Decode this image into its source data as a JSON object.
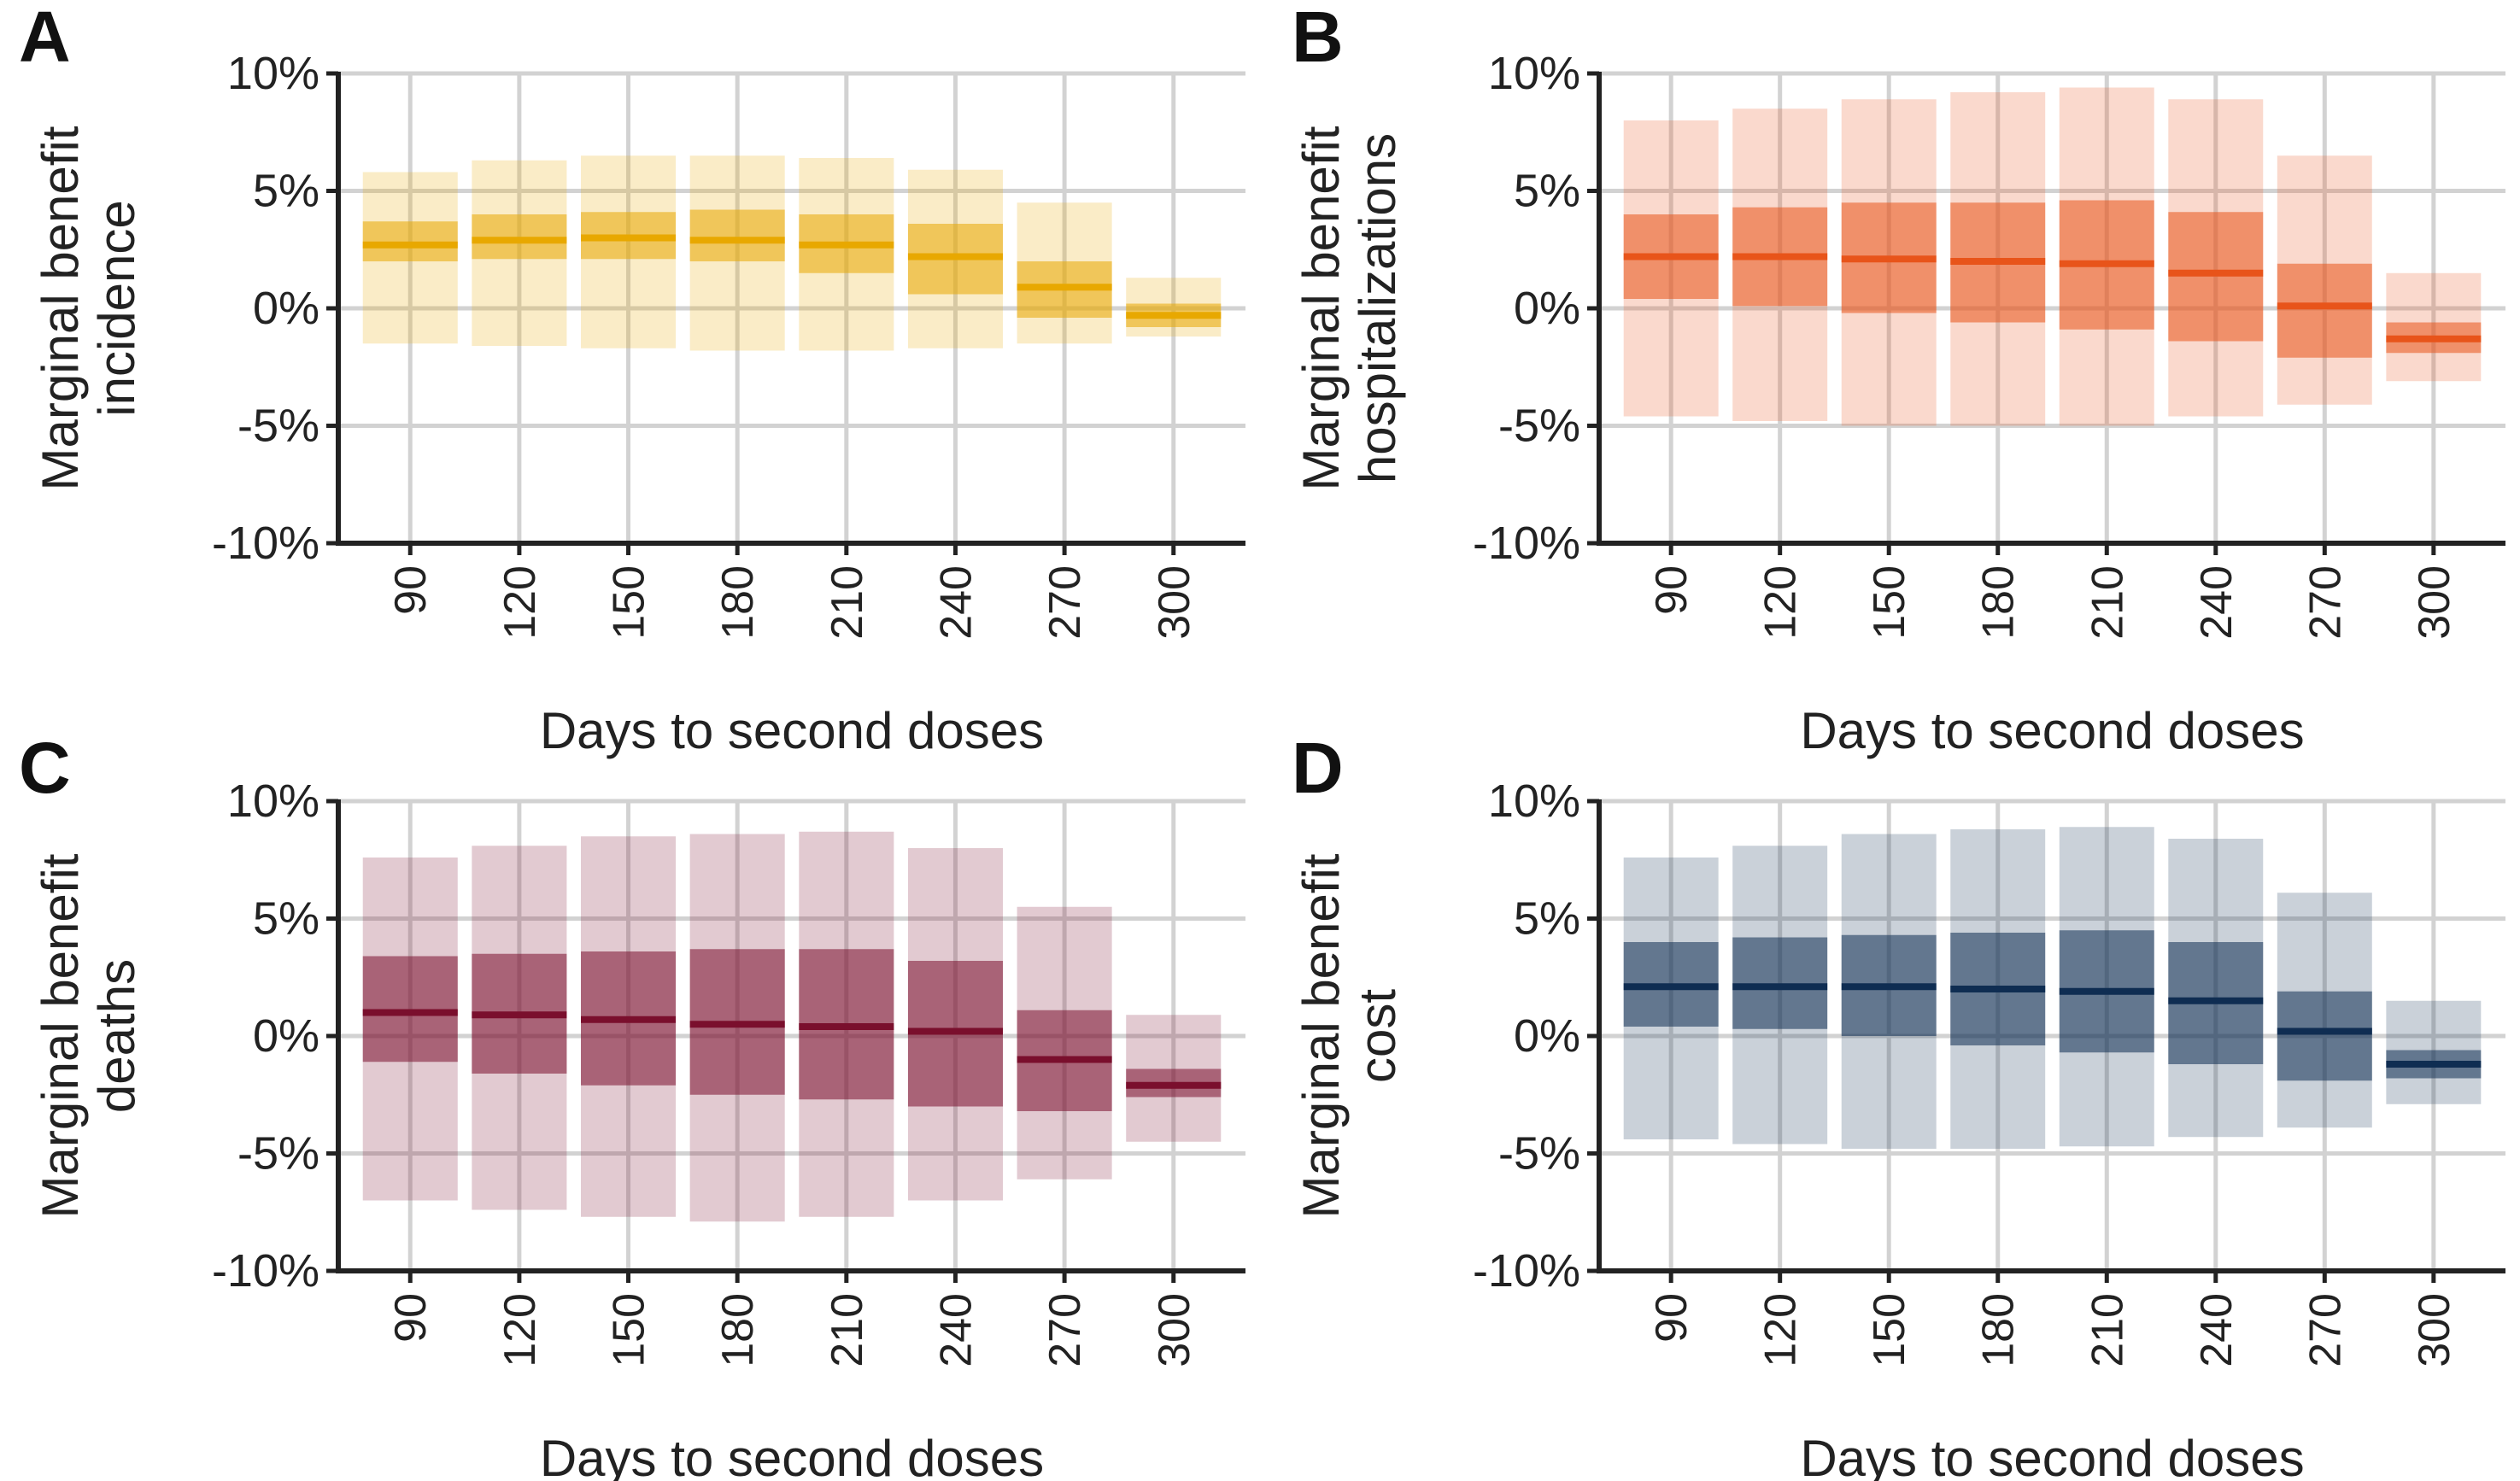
{
  "figure": {
    "xlabel": "Days to second doses",
    "ylabel_prefix": "Marginal benefit",
    "ylim": [
      -10,
      10
    ],
    "yticks": [
      "10%",
      "5%",
      "0%",
      "-5%",
      "-10%"
    ],
    "categories": [
      "90",
      "120",
      "150",
      "180",
      "210",
      "240",
      "270",
      "300"
    ]
  },
  "chart_data": [
    {
      "panel": "A",
      "type": "bar",
      "title": "",
      "ylabel": "Marginal benefit incidence",
      "metric": "incidence",
      "xlabel": "Days to second doses",
      "ylim": [
        -10,
        10
      ],
      "grid": true,
      "color": "#E8A800",
      "categories": [
        "90",
        "120",
        "150",
        "180",
        "210",
        "240",
        "270",
        "300"
      ],
      "median": [
        2.7,
        2.9,
        3.0,
        2.9,
        2.7,
        2.2,
        0.9,
        -0.3
      ],
      "inner_low": [
        2.0,
        2.1,
        2.1,
        2.0,
        1.5,
        0.6,
        -0.4,
        -0.8
      ],
      "inner_high": [
        3.7,
        4.0,
        4.1,
        4.2,
        4.0,
        3.6,
        2.0,
        0.2
      ],
      "outer_low": [
        -1.5,
        -1.6,
        -1.7,
        -1.8,
        -1.8,
        -1.7,
        -1.5,
        -1.2
      ],
      "outer_high": [
        5.8,
        6.3,
        6.5,
        6.5,
        6.4,
        5.9,
        4.5,
        1.3
      ]
    },
    {
      "panel": "B",
      "type": "bar",
      "title": "",
      "ylabel": "Marginal benefit hospitalizations",
      "metric": "hospitalizations",
      "xlabel": "Days to second doses",
      "ylim": [
        -10,
        10
      ],
      "grid": true,
      "color": "#E8541A",
      "categories": [
        "90",
        "120",
        "150",
        "180",
        "210",
        "240",
        "270",
        "300"
      ],
      "median": [
        2.2,
        2.2,
        2.1,
        2.0,
        1.9,
        1.5,
        0.1,
        -1.3
      ],
      "inner_low": [
        0.4,
        0.1,
        -0.2,
        -0.6,
        -0.9,
        -1.4,
        -2.1,
        -1.9
      ],
      "inner_high": [
        4.0,
        4.3,
        4.5,
        4.5,
        4.6,
        4.1,
        1.9,
        -0.6
      ],
      "outer_low": [
        -4.6,
        -4.8,
        -5.0,
        -5.0,
        -5.0,
        -4.6,
        -4.1,
        -3.1
      ],
      "outer_high": [
        8.0,
        8.5,
        8.9,
        9.2,
        9.4,
        8.9,
        6.5,
        1.5
      ]
    },
    {
      "panel": "C",
      "type": "bar",
      "title": "",
      "ylabel": "Marginal benefit deaths",
      "metric": "deaths",
      "xlabel": "Days to second doses",
      "ylim": [
        -10,
        10
      ],
      "grid": true,
      "color": "#7A0F2D",
      "categories": [
        "90",
        "120",
        "150",
        "180",
        "210",
        "240",
        "270",
        "300"
      ],
      "median": [
        1.0,
        0.9,
        0.7,
        0.5,
        0.4,
        0.2,
        -1.0,
        -2.1
      ],
      "inner_low": [
        -1.1,
        -1.6,
        -2.1,
        -2.5,
        -2.7,
        -3.0,
        -3.2,
        -2.6
      ],
      "inner_high": [
        3.4,
        3.5,
        3.6,
        3.7,
        3.7,
        3.2,
        1.1,
        -1.4
      ],
      "outer_low": [
        -7.0,
        -7.4,
        -7.7,
        -7.9,
        -7.7,
        -7.0,
        -6.1,
        -4.5
      ],
      "outer_high": [
        7.6,
        8.1,
        8.5,
        8.6,
        8.7,
        8.0,
        5.5,
        0.9
      ]
    },
    {
      "panel": "D",
      "type": "bar",
      "title": "",
      "ylabel": "Marginal benefit cost",
      "metric": "cost",
      "xlabel": "Days to second doses",
      "ylim": [
        -10,
        10
      ],
      "grid": true,
      "color": "#0F2D52",
      "categories": [
        "90",
        "120",
        "150",
        "180",
        "210",
        "240",
        "270",
        "300"
      ],
      "median": [
        2.1,
        2.1,
        2.1,
        2.0,
        1.9,
        1.5,
        0.2,
        -1.2
      ],
      "inner_low": [
        0.4,
        0.3,
        0.0,
        -0.4,
        -0.7,
        -1.2,
        -1.9,
        -1.8
      ],
      "inner_high": [
        4.0,
        4.2,
        4.3,
        4.4,
        4.5,
        4.0,
        1.9,
        -0.6
      ],
      "outer_low": [
        -4.4,
        -4.6,
        -4.8,
        -4.8,
        -4.7,
        -4.3,
        -3.9,
        -2.9
      ],
      "outer_high": [
        7.6,
        8.1,
        8.6,
        8.8,
        8.9,
        8.4,
        6.1,
        1.5
      ]
    }
  ]
}
